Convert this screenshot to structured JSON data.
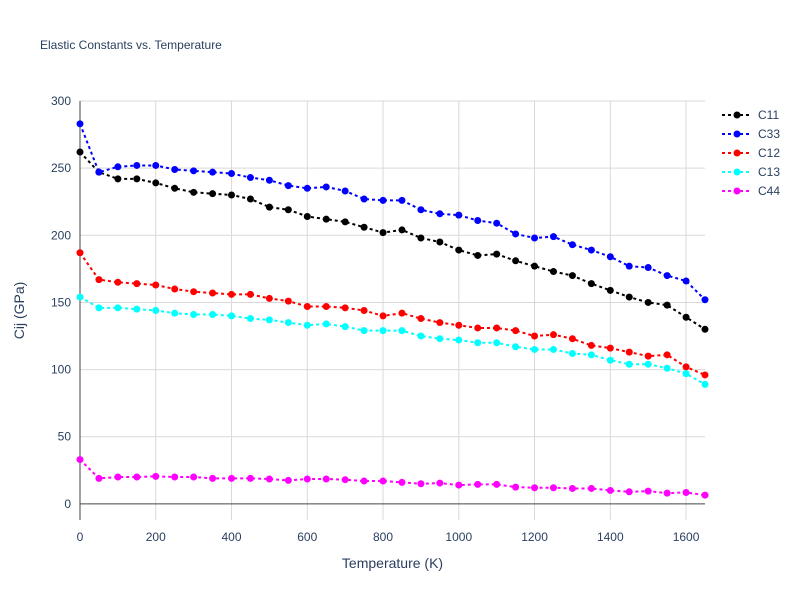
{
  "chart_data": {
    "type": "line",
    "title": "Elastic Constants vs. Temperature",
    "xlabel": "Temperature (K)",
    "ylabel": "Cij (GPa)",
    "xlim": [
      0,
      1650
    ],
    "ylim": [
      -12,
      300
    ],
    "xticks": [
      0,
      200,
      400,
      600,
      800,
      1000,
      1200,
      1400,
      1600
    ],
    "yticks": [
      0,
      50,
      100,
      150,
      200,
      250,
      300
    ],
    "grid": true,
    "legend_position": "top-right",
    "x": [
      0,
      50,
      100,
      150,
      200,
      250,
      300,
      350,
      400,
      450,
      500,
      550,
      600,
      650,
      700,
      750,
      800,
      850,
      900,
      950,
      1000,
      1050,
      1100,
      1150,
      1200,
      1250,
      1300,
      1350,
      1400,
      1450,
      1500,
      1550,
      1600,
      1650
    ],
    "series": [
      {
        "name": "C11",
        "color": "#000000",
        "values": [
          262,
          247,
          242,
          242,
          239,
          235,
          232,
          231,
          230,
          227,
          221,
          219,
          214,
          212,
          210,
          206,
          202,
          204,
          198,
          195,
          189,
          185,
          186,
          181,
          177,
          173,
          170,
          164,
          159,
          154,
          150,
          148,
          139,
          130
        ]
      },
      {
        "name": "C33",
        "color": "#0000ff",
        "values": [
          283,
          247,
          251,
          252,
          252,
          249,
          248,
          247,
          246,
          243,
          241,
          237,
          235,
          236,
          233,
          227,
          226,
          226,
          219,
          216,
          215,
          211,
          209,
          201,
          198,
          199,
          193,
          189,
          184,
          177,
          176,
          170,
          166,
          152
        ]
      },
      {
        "name": "C12",
        "color": "#ff0000",
        "values": [
          187,
          167,
          165,
          164,
          163,
          160,
          158,
          157,
          156,
          156,
          153,
          151,
          147,
          147,
          146,
          144,
          140,
          142,
          138,
          135,
          133,
          131,
          131,
          129,
          125,
          126,
          123,
          118,
          116,
          113,
          110,
          111,
          102,
          96
        ]
      },
      {
        "name": "C13",
        "color": "#00ffff",
        "values": [
          154,
          146,
          146,
          145,
          144,
          142,
          141,
          141,
          140,
          138,
          137,
          135,
          133,
          134,
          132,
          129,
          129,
          129,
          125,
          123,
          122,
          120,
          120,
          117,
          115,
          115,
          112,
          111,
          107,
          104,
          104,
          101,
          97,
          89
        ]
      },
      {
        "name": "C44",
        "color": "#ff00ff",
        "values": [
          33,
          19,
          20,
          20,
          20.5,
          20,
          20,
          19,
          19,
          19,
          18.5,
          17.5,
          18.5,
          18.5,
          18,
          17,
          17,
          16,
          15,
          15.5,
          14,
          14.5,
          14.5,
          12.5,
          12,
          12,
          11.5,
          11.5,
          10,
          9,
          9.5,
          8,
          8.5,
          6.5
        ]
      }
    ]
  }
}
